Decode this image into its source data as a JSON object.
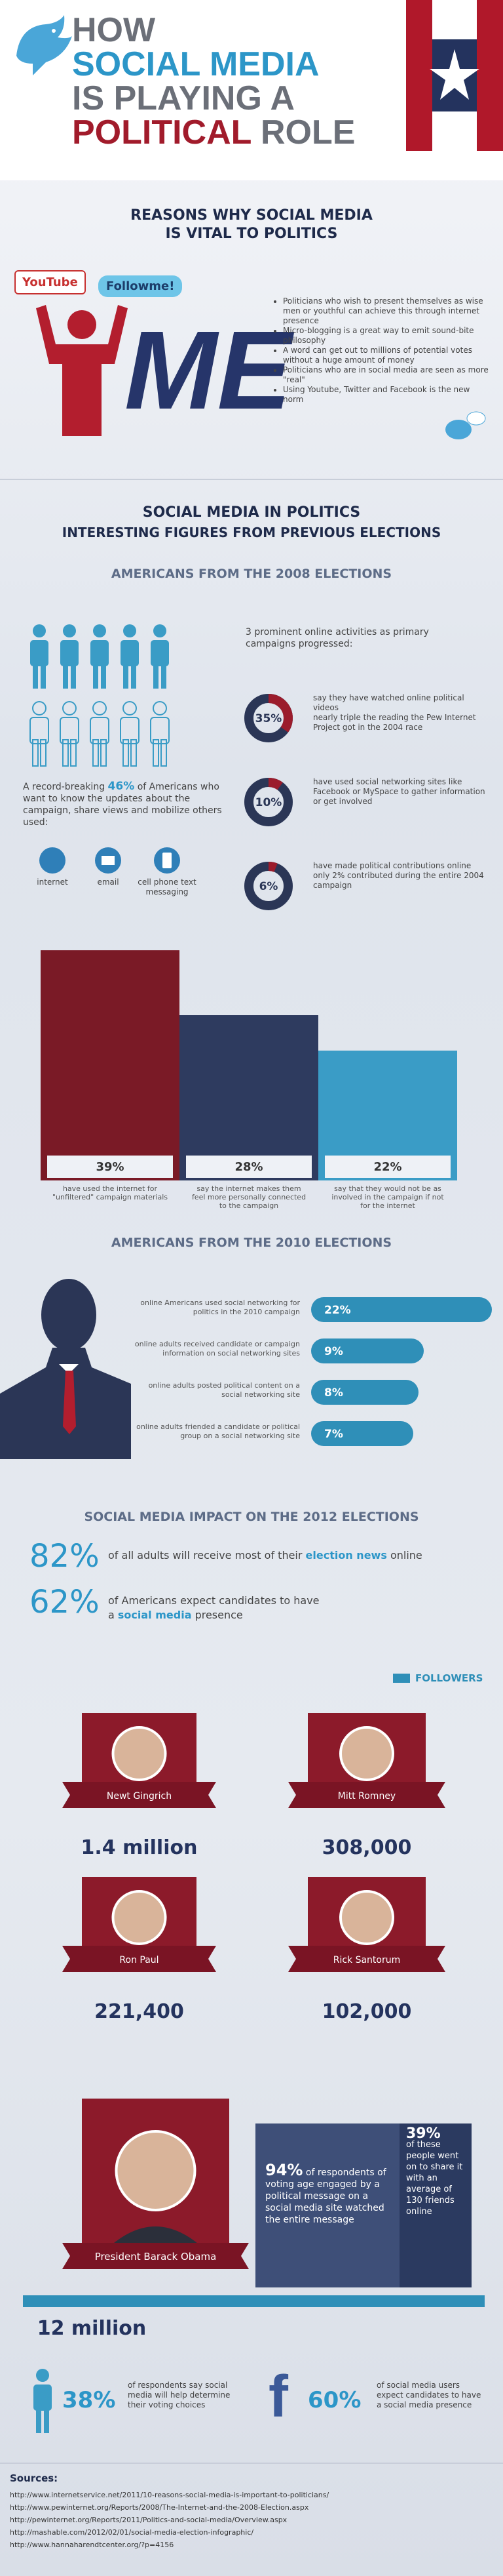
{
  "header": {
    "title_lines": [
      "HOW",
      "SOCIAL MEDIA",
      "IS PLAYING A"
    ],
    "title_last": [
      "POLITICAL",
      "ROLE"
    ]
  },
  "reasons": {
    "title_lines": [
      "REASONS WHY SOCIAL MEDIA",
      "IS VITAL TO POLITICS"
    ],
    "logos": [
      "YouTube",
      "Followme!"
    ],
    "me": "ME",
    "bullets": [
      "Politicians who wish to present themselves as wise men or youthful can achieve this through internet presence",
      "Micro-blogging is a great way to emit sound-bite philosophy",
      "A word can get out to millions of potential votes without a huge amount of money",
      "Politicians who are in social media are seen as more \"real\"",
      "Using Youtube, Twitter and Facebook is the new norm"
    ]
  },
  "figures": {
    "title": "SOCIAL MEDIA IN POLITICS",
    "subtitle": "INTERESTING FIGURES FROM PREVIOUS ELECTIONS"
  },
  "e2008": {
    "title": "AMERICANS FROM THE 2008 ELECTIONS",
    "record": {
      "before": "A record-breaking ",
      "highlight": "46%",
      "after": " of Americans who want to know the updates about the campaign, share views and mobilize others used:"
    },
    "channels": [
      "internet",
      "email",
      "cell phone text messaging"
    ],
    "activities_intro": "3 prominent online activities as primary campaigns progressed:",
    "activities": [
      {
        "value": 35,
        "label": "35%",
        "lines": [
          "say they have watched online political videos",
          "nearly triple the reading the Pew Internet Project got in the 2004 race"
        ]
      },
      {
        "value": 10,
        "label": "10%",
        "lines": [
          "have used social networking sites like Facebook or MySpace to gather information or get involved"
        ]
      },
      {
        "value": 6,
        "label": "6%",
        "lines": [
          "have made political contributions online",
          "only 2% contributed during the entire 2004 campaign"
        ]
      }
    ],
    "bars": [
      {
        "value": 39,
        "label": "39%",
        "caption": "have used the internet for \"unfiltered\" campaign materials",
        "color": "#7a1a26"
      },
      {
        "value": 28,
        "label": "28%",
        "caption": "say the internet makes them feel more personally connected to the campaign",
        "color": "#2e3b5f"
      },
      {
        "value": 22,
        "label": "22%",
        "caption": "say that they would not be as involved in the campaign if not for the internet",
        "color": "#3a9cc6"
      }
    ]
  },
  "e2010": {
    "title": "AMERICANS FROM THE 2010 ELECTIONS",
    "color": "#2f8fb8",
    "rows": [
      {
        "value": 22,
        "label": "22%",
        "text": "online Americans used social networking for politics in the 2010 campaign"
      },
      {
        "value": 9,
        "label": "9%",
        "text": "online adults received candidate or campaign information on social networking sites"
      },
      {
        "value": 8,
        "label": "8%",
        "text": "online adults posted political content on a social networking site"
      },
      {
        "value": 7,
        "label": "7%",
        "text": "online adults friended a candidate or political group on a social networking site"
      }
    ]
  },
  "e2012": {
    "title": "SOCIAL MEDIA IMPACT ON THE 2012 ELECTIONS",
    "stats": [
      {
        "value": "82%",
        "before": "of all adults will receive most of their ",
        "bold": "election news",
        "after": " online"
      },
      {
        "value": "62%",
        "before": "of Americans expect candidates to have a ",
        "bold": "social media",
        "after": " presence"
      }
    ],
    "legend": "FOLLOWERS",
    "candidates": [
      {
        "name": "Newt Gingrich",
        "followers": "1.4 million"
      },
      {
        "name": "Mitt Romney",
        "followers": "308,000"
      },
      {
        "name": "Ron Paul",
        "followers": "221,400"
      },
      {
        "name": "Rick Santorum",
        "followers": "102,000"
      },
      {
        "name": "President Barack Obama",
        "followers": "12 million"
      }
    ],
    "obama_box": {
      "highlight": "94%",
      "text": "of respondents of voting age engaged by a political message on a social media site watched the entire message"
    },
    "share_box": {
      "highlight": "39%",
      "text": "of these people went on to share it with an average of 130 friends online"
    },
    "bottom": [
      {
        "value": "38%",
        "text": "of respondents say social media will help determine their voting choices"
      },
      {
        "value": "60%",
        "text": "of social media users expect candidates to have a social media presence"
      }
    ]
  },
  "sources": {
    "title": "Sources:",
    "items": [
      "http://www.internetservice.net/2011/10-reasons-social-media-is-important-to-politicians/",
      "http://www.pewinternet.org/Reports/2008/The-Internet-and-the-2008-Election.aspx",
      "http://pewinternet.org/Reports/2011/Politics-and-social-media/Overview.aspx",
      "http://mashable.com/2012/02/01/social-media-election-infographic/",
      "http://www.hannaharendtcenter.org/?p=4156"
    ]
  }
}
